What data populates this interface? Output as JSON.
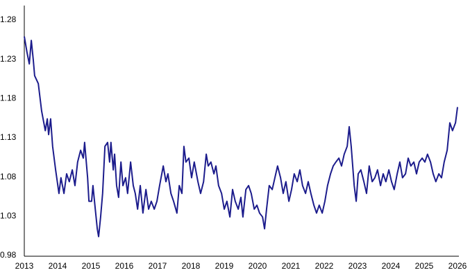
{
  "chart_data": {
    "type": "line",
    "color": "#1c1c8c",
    "grid": false,
    "xlim": [
      2013,
      2026
    ],
    "xticks": [
      2013,
      2014,
      2015,
      2016,
      2017,
      2018,
      2019,
      2020,
      2021,
      2022,
      2023,
      2024,
      2025,
      2026
    ],
    "ylim": [
      0.98,
      1.28
    ],
    "yticks": [
      0.98,
      1.03,
      1.08,
      1.13,
      1.18,
      1.23,
      1.28
    ],
    "x": [
      2013.0,
      2013.08,
      2013.15,
      2013.21,
      2013.27,
      2013.31,
      2013.42,
      2013.52,
      2013.63,
      2013.69,
      2013.73,
      2013.79,
      2013.85,
      2013.94,
      2014.04,
      2014.1,
      2014.19,
      2014.27,
      2014.35,
      2014.44,
      2014.52,
      2014.6,
      2014.69,
      2014.77,
      2014.81,
      2014.9,
      2014.94,
      2015.02,
      2015.06,
      2015.13,
      2015.19,
      2015.23,
      2015.29,
      2015.35,
      2015.42,
      2015.5,
      2015.56,
      2015.6,
      2015.67,
      2015.71,
      2015.77,
      2015.83,
      2015.9,
      2015.96,
      2016.04,
      2016.1,
      2016.19,
      2016.27,
      2016.33,
      2016.4,
      2016.48,
      2016.56,
      2016.65,
      2016.73,
      2016.81,
      2016.9,
      2016.98,
      2017.06,
      2017.17,
      2017.25,
      2017.31,
      2017.4,
      2017.48,
      2017.58,
      2017.65,
      2017.73,
      2017.79,
      2017.85,
      2017.94,
      2018.02,
      2018.1,
      2018.21,
      2018.29,
      2018.38,
      2018.46,
      2018.52,
      2018.6,
      2018.69,
      2018.75,
      2018.83,
      2018.92,
      2019.0,
      2019.08,
      2019.17,
      2019.25,
      2019.33,
      2019.42,
      2019.5,
      2019.56,
      2019.65,
      2019.73,
      2019.81,
      2019.9,
      2019.98,
      2020.06,
      2020.15,
      2020.21,
      2020.27,
      2020.35,
      2020.44,
      2020.52,
      2020.6,
      2020.69,
      2020.77,
      2020.85,
      2020.94,
      2021.02,
      2021.1,
      2021.19,
      2021.27,
      2021.35,
      2021.44,
      2021.52,
      2021.6,
      2021.69,
      2021.77,
      2021.85,
      2021.94,
      2022.02,
      2022.1,
      2022.19,
      2022.27,
      2022.35,
      2022.44,
      2022.52,
      2022.6,
      2022.69,
      2022.75,
      2022.81,
      2022.9,
      2022.96,
      2023.02,
      2023.1,
      2023.19,
      2023.27,
      2023.35,
      2023.44,
      2023.52,
      2023.6,
      2023.69,
      2023.77,
      2023.85,
      2023.94,
      2024.02,
      2024.1,
      2024.19,
      2024.27,
      2024.35,
      2024.44,
      2024.52,
      2024.6,
      2024.69,
      2024.77,
      2024.85,
      2024.94,
      2025.02,
      2025.1,
      2025.19,
      2025.27,
      2025.35,
      2025.44,
      2025.52,
      2025.6,
      2025.69,
      2025.77,
      2025.85,
      2025.94,
      2026.0
    ],
    "values": [
      1.26,
      1.24,
      1.225,
      1.255,
      1.23,
      1.21,
      1.2,
      1.165,
      1.14,
      1.155,
      1.135,
      1.155,
      1.12,
      1.09,
      1.06,
      1.08,
      1.06,
      1.085,
      1.075,
      1.09,
      1.07,
      1.1,
      1.115,
      1.105,
      1.125,
      1.08,
      1.05,
      1.05,
      1.07,
      1.04,
      1.015,
      1.005,
      1.03,
      1.06,
      1.12,
      1.125,
      1.1,
      1.125,
      1.09,
      1.11,
      1.07,
      1.055,
      1.1,
      1.07,
      1.08,
      1.06,
      1.1,
      1.07,
      1.06,
      1.04,
      1.07,
      1.035,
      1.065,
      1.04,
      1.05,
      1.04,
      1.05,
      1.07,
      1.095,
      1.075,
      1.085,
      1.06,
      1.05,
      1.035,
      1.07,
      1.06,
      1.12,
      1.1,
      1.105,
      1.08,
      1.1,
      1.075,
      1.06,
      1.075,
      1.11,
      1.095,
      1.1,
      1.085,
      1.095,
      1.07,
      1.06,
      1.04,
      1.05,
      1.03,
      1.065,
      1.05,
      1.04,
      1.055,
      1.03,
      1.065,
      1.07,
      1.06,
      1.04,
      1.045,
      1.035,
      1.03,
      1.015,
      1.04,
      1.07,
      1.065,
      1.08,
      1.095,
      1.08,
      1.06,
      1.075,
      1.05,
      1.065,
      1.085,
      1.075,
      1.09,
      1.07,
      1.06,
      1.075,
      1.06,
      1.045,
      1.035,
      1.045,
      1.035,
      1.05,
      1.07,
      1.085,
      1.095,
      1.1,
      1.105,
      1.095,
      1.11,
      1.12,
      1.145,
      1.12,
      1.07,
      1.05,
      1.085,
      1.09,
      1.075,
      1.06,
      1.095,
      1.075,
      1.08,
      1.09,
      1.07,
      1.085,
      1.075,
      1.09,
      1.075,
      1.065,
      1.085,
      1.1,
      1.08,
      1.085,
      1.105,
      1.095,
      1.1,
      1.085,
      1.1,
      1.105,
      1.1,
      1.11,
      1.1,
      1.085,
      1.075,
      1.085,
      1.08,
      1.1,
      1.115,
      1.15,
      1.14,
      1.15,
      1.17
    ]
  }
}
